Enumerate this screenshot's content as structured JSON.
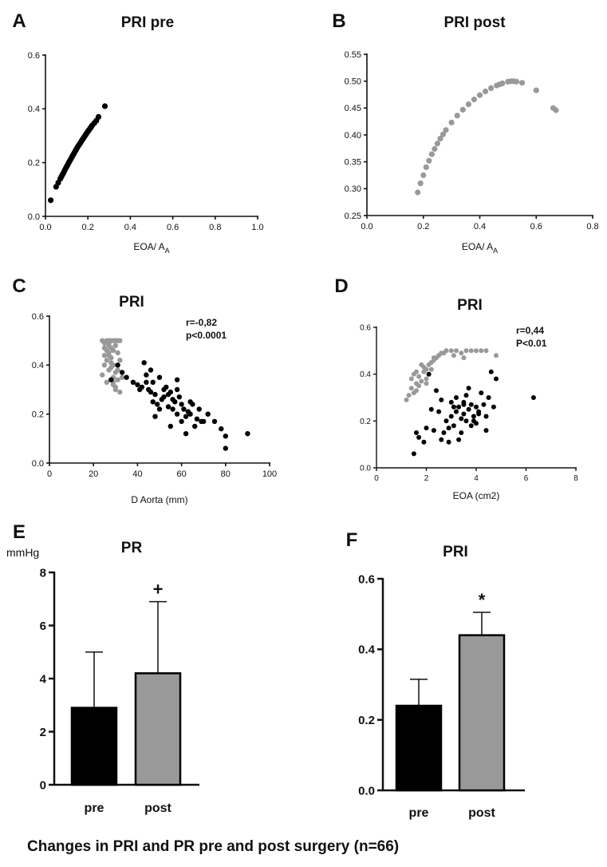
{
  "colors": {
    "pre": "#000000",
    "post": "#999999",
    "axis": "#111111"
  },
  "caption": "Changes in PRI and PR pre and post surgery (n=66)",
  "chart_data": [
    {
      "id": "A",
      "type": "scatter",
      "panel_label": "A",
      "title": "PRI pre",
      "xlabel": "EOA/ A",
      "xlabel_sub": "A",
      "ylabel": "",
      "xlim": [
        0,
        1.0
      ],
      "ylim": [
        0,
        0.6
      ],
      "x_ticks": [
        0,
        0.2,
        0.4,
        0.6,
        0.8,
        1.0
      ],
      "x_tick_labels": [
        "0.0",
        "0.2",
        "0.4",
        "0.6",
        "0.8",
        "1.0"
      ],
      "y_ticks": [
        0,
        0.2,
        0.4,
        0.6
      ],
      "y_tick_labels": [
        "0.0",
        "0.2",
        "0.4",
        "0.6"
      ],
      "series": [
        {
          "name": "pre",
          "color": "#000000",
          "x": [
            0.025,
            0.05,
            0.06,
            0.07,
            0.075,
            0.08,
            0.085,
            0.09,
            0.095,
            0.1,
            0.105,
            0.11,
            0.115,
            0.12,
            0.125,
            0.13,
            0.135,
            0.14,
            0.145,
            0.15,
            0.155,
            0.16,
            0.165,
            0.17,
            0.175,
            0.18,
            0.185,
            0.19,
            0.195,
            0.2,
            0.205,
            0.21,
            0.215,
            0.22,
            0.23,
            0.24,
            0.25,
            0.28
          ],
          "y": [
            0.06,
            0.11,
            0.125,
            0.14,
            0.148,
            0.155,
            0.162,
            0.17,
            0.178,
            0.185,
            0.192,
            0.2,
            0.207,
            0.214,
            0.221,
            0.228,
            0.235,
            0.242,
            0.249,
            0.256,
            0.262,
            0.268,
            0.274,
            0.28,
            0.286,
            0.292,
            0.298,
            0.304,
            0.31,
            0.316,
            0.321,
            0.327,
            0.332,
            0.338,
            0.347,
            0.356,
            0.37,
            0.41
          ]
        }
      ]
    },
    {
      "id": "B",
      "type": "scatter",
      "panel_label": "B",
      "title": "PRI post",
      "xlabel": "EOA/ A",
      "xlabel_sub": "A",
      "ylabel": "",
      "xlim": [
        0,
        0.8
      ],
      "ylim": [
        0.25,
        0.55
      ],
      "x_ticks": [
        0,
        0.2,
        0.4,
        0.6,
        0.8
      ],
      "x_tick_labels": [
        "0.0",
        "0.2",
        "0.4",
        "0.6",
        "0.8"
      ],
      "y_ticks": [
        0.25,
        0.3,
        0.35,
        0.4,
        0.45,
        0.5,
        0.55
      ],
      "y_tick_labels": [
        "0.25",
        "0.30",
        "0.35",
        "0.40",
        "0.45",
        "0.50",
        "0.55"
      ],
      "series": [
        {
          "name": "post",
          "color": "#999999",
          "x": [
            0.18,
            0.19,
            0.2,
            0.21,
            0.22,
            0.23,
            0.24,
            0.25,
            0.26,
            0.27,
            0.28,
            0.3,
            0.32,
            0.34,
            0.36,
            0.38,
            0.4,
            0.42,
            0.44,
            0.46,
            0.47,
            0.48,
            0.5,
            0.51,
            0.52,
            0.53,
            0.55,
            0.6,
            0.66,
            0.67
          ],
          "y": [
            0.293,
            0.31,
            0.325,
            0.34,
            0.352,
            0.364,
            0.374,
            0.384,
            0.393,
            0.401,
            0.409,
            0.423,
            0.436,
            0.447,
            0.457,
            0.466,
            0.474,
            0.481,
            0.487,
            0.492,
            0.494,
            0.496,
            0.499,
            0.5,
            0.5,
            0.499,
            0.497,
            0.483,
            0.45,
            0.446
          ]
        }
      ]
    },
    {
      "id": "C",
      "type": "scatter",
      "panel_label": "C",
      "title": "PRI",
      "xlabel": "D Aorta   (mm)",
      "ylabel": "",
      "xlim": [
        0,
        100
      ],
      "ylim": [
        0,
        0.6
      ],
      "x_ticks": [
        0,
        20,
        40,
        60,
        80,
        100
      ],
      "x_tick_labels": [
        "0",
        "20",
        "40",
        "60",
        "80",
        "100"
      ],
      "y_ticks": [
        0,
        0.2,
        0.4,
        0.6
      ],
      "y_tick_labels": [
        "0.0",
        "0.2",
        "0.4",
        "0.6"
      ],
      "annotation": [
        "r=-0,82",
        "p<0.0001"
      ],
      "series": [
        {
          "name": "post",
          "color": "#999999",
          "x": [
            24,
            25,
            25,
            26,
            26,
            27,
            27,
            27,
            28,
            28,
            28,
            29,
            29,
            29,
            30,
            30,
            30,
            31,
            31,
            32,
            32,
            33,
            24,
            25,
            26,
            27,
            28,
            29,
            30,
            31,
            26,
            27,
            29,
            31,
            32,
            25,
            28,
            30,
            27,
            29
          ],
          "y": [
            0.5,
            0.49,
            0.47,
            0.5,
            0.46,
            0.5,
            0.48,
            0.45,
            0.5,
            0.47,
            0.43,
            0.5,
            0.46,
            0.4,
            0.5,
            0.48,
            0.37,
            0.5,
            0.45,
            0.5,
            0.42,
            0.35,
            0.36,
            0.4,
            0.33,
            0.38,
            0.41,
            0.35,
            0.3,
            0.34,
            0.42,
            0.44,
            0.32,
            0.38,
            0.29,
            0.44,
            0.39,
            0.31,
            0.49,
            0.33
          ]
        },
        {
          "name": "pre",
          "color": "#000000",
          "x": [
            28,
            31,
            33,
            35,
            38,
            40,
            41,
            42,
            43,
            44,
            45,
            46,
            47,
            47,
            48,
            49,
            50,
            50,
            51,
            52,
            53,
            54,
            55,
            55,
            56,
            57,
            58,
            58,
            59,
            60,
            60,
            61,
            62,
            63,
            64,
            65,
            66,
            67,
            68,
            69,
            70,
            72,
            75,
            78,
            80,
            80,
            90,
            44,
            46,
            52,
            56,
            62,
            48,
            54,
            58,
            64
          ],
          "y": [
            0.34,
            0.4,
            0.37,
            0.35,
            0.33,
            0.32,
            0.3,
            0.31,
            0.41,
            0.33,
            0.3,
            0.29,
            0.25,
            0.33,
            0.28,
            0.24,
            0.35,
            0.22,
            0.26,
            0.27,
            0.31,
            0.23,
            0.29,
            0.15,
            0.22,
            0.25,
            0.3,
            0.2,
            0.27,
            0.24,
            0.17,
            0.22,
            0.19,
            0.21,
            0.2,
            0.24,
            0.15,
            0.18,
            0.22,
            0.17,
            0.17,
            0.2,
            0.17,
            0.14,
            0.11,
            0.06,
            0.12,
            0.36,
            0.38,
            0.3,
            0.26,
            0.12,
            0.19,
            0.28,
            0.34,
            0.25
          ]
        }
      ]
    },
    {
      "id": "D",
      "type": "scatter",
      "panel_label": "D",
      "title": "PRI",
      "xlabel": "EOA (cm2)",
      "ylabel": "",
      "xlim": [
        0,
        8
      ],
      "ylim": [
        0,
        0.6
      ],
      "x_ticks": [
        0,
        2,
        4,
        6,
        8
      ],
      "x_tick_labels": [
        "0",
        "2",
        "4",
        "6",
        "8"
      ],
      "y_ticks": [
        0,
        0.2,
        0.4,
        0.6
      ],
      "y_tick_labels": [
        "0.0",
        "0.2",
        "0.4",
        "0.6"
      ],
      "annotation": [
        "r=0,44",
        "P<0.01"
      ],
      "series": [
        {
          "name": "post",
          "color": "#999999",
          "x": [
            1.2,
            1.3,
            1.4,
            1.4,
            1.5,
            1.6,
            1.6,
            1.7,
            1.8,
            1.9,
            2.0,
            2.0,
            2.1,
            2.2,
            2.3,
            2.4,
            2.5,
            2.6,
            2.8,
            3.0,
            3.2,
            3.4,
            3.6,
            3.8,
            4.0,
            4.2,
            4.4,
            4.8,
            1.5,
            1.7,
            1.9,
            2.1,
            2.3,
            2.2,
            2.0,
            1.8,
            2.7,
            3.1,
            3.5,
            1.6
          ],
          "y": [
            0.29,
            0.31,
            0.34,
            0.38,
            0.4,
            0.36,
            0.33,
            0.39,
            0.37,
            0.41,
            0.38,
            0.42,
            0.44,
            0.45,
            0.46,
            0.47,
            0.48,
            0.49,
            0.5,
            0.5,
            0.5,
            0.49,
            0.5,
            0.5,
            0.5,
            0.5,
            0.5,
            0.48,
            0.32,
            0.35,
            0.43,
            0.4,
            0.47,
            0.42,
            0.36,
            0.44,
            0.49,
            0.48,
            0.47,
            0.41
          ]
        },
        {
          "name": "pre",
          "color": "#000000",
          "x": [
            1.5,
            1.6,
            1.7,
            1.9,
            2.1,
            2.3,
            2.5,
            2.6,
            2.7,
            2.8,
            2.9,
            3.0,
            3.0,
            3.1,
            3.2,
            3.2,
            3.3,
            3.3,
            3.4,
            3.4,
            3.5,
            3.5,
            3.6,
            3.6,
            3.7,
            3.8,
            3.8,
            3.9,
            4.0,
            4.0,
            4.1,
            4.2,
            4.3,
            4.4,
            4.5,
            4.6,
            4.7,
            4.8,
            6.3,
            2.2,
            2.4,
            2.9,
            3.1,
            3.7,
            3.9,
            4.1,
            2.0,
            2.6,
            3.5,
            4.4
          ],
          "y": [
            0.06,
            0.15,
            0.13,
            0.11,
            0.4,
            0.16,
            0.24,
            0.29,
            0.15,
            0.2,
            0.11,
            0.22,
            0.28,
            0.18,
            0.24,
            0.3,
            0.12,
            0.26,
            0.21,
            0.15,
            0.23,
            0.28,
            0.2,
            0.31,
            0.25,
            0.18,
            0.27,
            0.22,
            0.19,
            0.26,
            0.24,
            0.32,
            0.27,
            0.22,
            0.3,
            0.41,
            0.26,
            0.38,
            0.3,
            0.25,
            0.33,
            0.17,
            0.26,
            0.34,
            0.2,
            0.23,
            0.17,
            0.12,
            0.27,
            0.16
          ]
        }
      ]
    },
    {
      "id": "E",
      "type": "bar",
      "panel_label": "E",
      "title": "PR",
      "unit_label": "mmHg",
      "categories": [
        "pre",
        "post"
      ],
      "values": [
        2.9,
        4.2
      ],
      "errors": [
        2.1,
        2.7
      ],
      "bar_colors": [
        "#000000",
        "#999999"
      ],
      "significance": [
        "",
        "+"
      ],
      "ylim": [
        0,
        8
      ],
      "y_ticks": [
        0,
        2,
        4,
        6,
        8
      ],
      "y_tick_labels": [
        "0",
        "2",
        "4",
        "6",
        "8"
      ]
    },
    {
      "id": "F",
      "type": "bar",
      "panel_label": "F",
      "title": "PRI",
      "categories": [
        "pre",
        "post"
      ],
      "values": [
        0.24,
        0.44
      ],
      "errors": [
        0.075,
        0.065
      ],
      "bar_colors": [
        "#000000",
        "#999999"
      ],
      "significance": [
        "",
        "*"
      ],
      "ylim": [
        0,
        0.6
      ],
      "y_ticks": [
        0,
        0.2,
        0.4,
        0.6
      ],
      "y_tick_labels": [
        "0.0",
        "0.2",
        "0.4",
        "0.6"
      ]
    }
  ]
}
